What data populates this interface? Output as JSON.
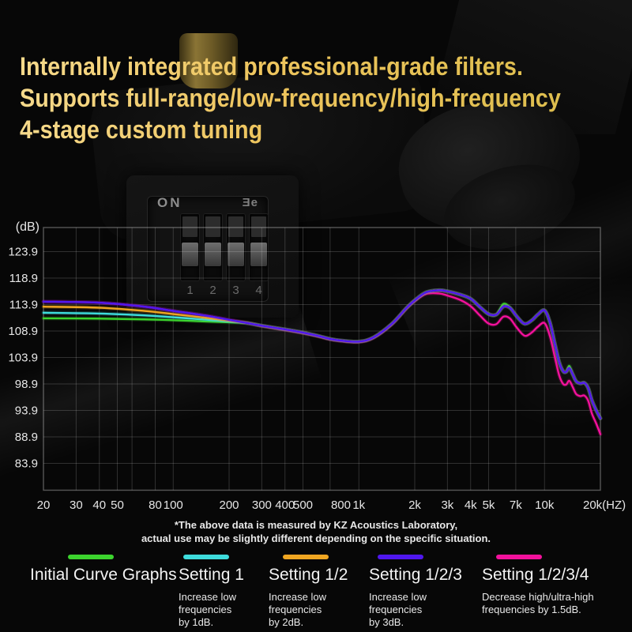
{
  "header": {
    "title_lines": [
      "Internally integrated professional-grade filters.",
      "Supports full-range/low-frequency/high-frequency",
      "4-stage custom tuning"
    ]
  },
  "dip_switch": {
    "on_label": "ON",
    "logo_text": "Ǝe",
    "switch_numbers": [
      "1",
      "2",
      "3",
      "4"
    ]
  },
  "chart_data": {
    "type": "line",
    "title": "",
    "x_unit_suffix": "(HZ)",
    "y_unit": "(dB)",
    "x_scale": "log",
    "xlim": [
      20,
      20000
    ],
    "ylim": [
      78.9,
      128.9
    ],
    "grid": true,
    "legend_position": "bottom",
    "y_ticks": [
      123.9,
      118.9,
      113.9,
      108.9,
      103.9,
      98.9,
      93.9,
      88.9,
      83.9
    ],
    "x_ticks": [
      {
        "f": 20,
        "label": "20"
      },
      {
        "f": 30,
        "label": "30"
      },
      {
        "f": 40,
        "label": "40"
      },
      {
        "f": 50,
        "label": "50"
      },
      {
        "f": 80,
        "label": "80"
      },
      {
        "f": 100,
        "label": "100"
      },
      {
        "f": 200,
        "label": "200"
      },
      {
        "f": 300,
        "label": "300"
      },
      {
        "f": 400,
        "label": "400"
      },
      {
        "f": 500,
        "label": "500"
      },
      {
        "f": 800,
        "label": "800"
      },
      {
        "f": 1000,
        "label": "1k"
      },
      {
        "f": 2000,
        "label": "2k"
      },
      {
        "f": 3000,
        "label": "3k"
      },
      {
        "f": 4000,
        "label": "4k"
      },
      {
        "f": 5000,
        "label": "5k"
      },
      {
        "f": 7000,
        "label": "7k"
      },
      {
        "f": 10000,
        "label": "10k"
      },
      {
        "f": 20000,
        "label": "20k(HZ)"
      }
    ],
    "x_gridlines": [
      30,
      40,
      50,
      60,
      80,
      100,
      200,
      300,
      400,
      500,
      700,
      1000,
      2000,
      3000,
      4000,
      5000,
      7000,
      10000
    ],
    "series": [
      {
        "name": "Initial Curve Graphs",
        "color": "#3cd42e",
        "points": [
          [
            20,
            111.3
          ],
          [
            40,
            111.25
          ],
          [
            70,
            111.1
          ],
          [
            100,
            110.95
          ],
          [
            150,
            110.7
          ],
          [
            200,
            110.55
          ],
          [
            250,
            110.4
          ],
          [
            300,
            109.9
          ],
          [
            400,
            109.2
          ],
          [
            500,
            108.6
          ],
          [
            600,
            108.0
          ],
          [
            700,
            107.4
          ],
          [
            800,
            107.1
          ],
          [
            1000,
            106.9
          ],
          [
            1200,
            107.7
          ],
          [
            1500,
            110.2
          ],
          [
            1800,
            113.2
          ],
          [
            2000,
            114.7
          ],
          [
            2300,
            116.2
          ],
          [
            2700,
            116.6
          ],
          [
            3000,
            116.4
          ],
          [
            3500,
            115.8
          ],
          [
            4000,
            115.0
          ],
          [
            4500,
            113.4
          ],
          [
            5000,
            112.1
          ],
          [
            5500,
            112.0
          ],
          [
            6000,
            114.0
          ],
          [
            6500,
            113.4
          ],
          [
            7000,
            111.9
          ],
          [
            7600,
            110.5
          ],
          [
            8000,
            110.3
          ],
          [
            8600,
            111.0
          ],
          [
            9200,
            112.0
          ],
          [
            10000,
            112.8
          ],
          [
            10700,
            110.5
          ],
          [
            11400,
            106.3
          ],
          [
            12000,
            103.0
          ],
          [
            12600,
            101.3
          ],
          [
            13100,
            101.2
          ],
          [
            13600,
            102.3
          ],
          [
            14200,
            100.7
          ],
          [
            14800,
            99.4
          ],
          [
            15600,
            99.0
          ],
          [
            16400,
            99.1
          ],
          [
            17200,
            98.1
          ],
          [
            18000,
            95.8
          ],
          [
            19000,
            93.9
          ],
          [
            20000,
            92.4
          ]
        ]
      },
      {
        "name": "Setting 1",
        "color": "#3edcdc",
        "points": [
          [
            20,
            112.35
          ],
          [
            40,
            112.2
          ],
          [
            70,
            111.85
          ],
          [
            100,
            111.5
          ],
          [
            150,
            111.05
          ],
          [
            200,
            110.7
          ],
          [
            250,
            110.4
          ],
          [
            300,
            109.9
          ],
          [
            400,
            109.2
          ],
          [
            500,
            108.6
          ],
          [
            600,
            108.0
          ],
          [
            700,
            107.4
          ],
          [
            800,
            107.1
          ],
          [
            1000,
            106.9
          ],
          [
            1200,
            107.7
          ],
          [
            1500,
            110.2
          ],
          [
            1800,
            113.2
          ],
          [
            2000,
            114.7
          ],
          [
            2300,
            116.2
          ],
          [
            2700,
            116.6
          ],
          [
            3000,
            116.4
          ],
          [
            3500,
            115.8
          ],
          [
            4000,
            115.0
          ],
          [
            4500,
            113.4
          ],
          [
            5000,
            112.1
          ],
          [
            5500,
            112.0
          ],
          [
            6000,
            113.5
          ],
          [
            6500,
            113.3
          ],
          [
            7000,
            111.9
          ],
          [
            7600,
            110.5
          ],
          [
            8000,
            110.3
          ],
          [
            8600,
            111.0
          ],
          [
            9200,
            112.0
          ],
          [
            10000,
            112.8
          ],
          [
            10700,
            110.5
          ],
          [
            11400,
            106.3
          ],
          [
            12000,
            103.0
          ],
          [
            12600,
            101.3
          ],
          [
            13100,
            101.2
          ],
          [
            13600,
            101.9
          ],
          [
            14200,
            100.7
          ],
          [
            14800,
            99.4
          ],
          [
            15600,
            99.0
          ],
          [
            16400,
            99.1
          ],
          [
            17200,
            98.1
          ],
          [
            18000,
            95.8
          ],
          [
            19000,
            93.9
          ],
          [
            20000,
            92.4
          ]
        ]
      },
      {
        "name": "Setting 1/2",
        "color": "#f0a621",
        "points": [
          [
            20,
            113.5
          ],
          [
            40,
            113.3
          ],
          [
            70,
            112.7
          ],
          [
            100,
            112.1
          ],
          [
            150,
            111.4
          ],
          [
            200,
            110.85
          ],
          [
            250,
            110.4
          ],
          [
            300,
            109.9
          ],
          [
            400,
            109.2
          ],
          [
            500,
            108.6
          ],
          [
            600,
            108.0
          ],
          [
            700,
            107.4
          ],
          [
            800,
            107.1
          ],
          [
            1000,
            106.9
          ],
          [
            1200,
            107.7
          ],
          [
            1500,
            110.2
          ],
          [
            1800,
            113.2
          ],
          [
            2000,
            114.7
          ],
          [
            2300,
            116.2
          ],
          [
            2700,
            116.6
          ],
          [
            3000,
            116.4
          ],
          [
            3500,
            115.8
          ],
          [
            4000,
            115.0
          ],
          [
            4500,
            113.4
          ],
          [
            5000,
            112.1
          ],
          [
            5500,
            112.0
          ],
          [
            6000,
            113.5
          ],
          [
            6500,
            113.3
          ],
          [
            7000,
            111.9
          ],
          [
            7600,
            110.5
          ],
          [
            8000,
            110.3
          ],
          [
            8600,
            111.0
          ],
          [
            9200,
            112.0
          ],
          [
            10000,
            112.8
          ],
          [
            10700,
            110.5
          ],
          [
            11400,
            106.3
          ],
          [
            12000,
            103.0
          ],
          [
            12600,
            101.3
          ],
          [
            13100,
            101.2
          ],
          [
            13600,
            101.9
          ],
          [
            14200,
            100.7
          ],
          [
            14800,
            99.4
          ],
          [
            15600,
            99.0
          ],
          [
            16400,
            99.1
          ],
          [
            17200,
            98.1
          ],
          [
            18000,
            95.8
          ],
          [
            19000,
            93.9
          ],
          [
            20000,
            92.4
          ]
        ]
      },
      {
        "name": "Setting 1/2/3",
        "color": "#4f17ef",
        "points": [
          [
            20,
            114.45
          ],
          [
            40,
            114.25
          ],
          [
            70,
            113.5
          ],
          [
            100,
            112.7
          ],
          [
            150,
            111.8
          ],
          [
            200,
            111.0
          ],
          [
            250,
            110.4
          ],
          [
            300,
            109.9
          ],
          [
            400,
            109.2
          ],
          [
            500,
            108.6
          ],
          [
            600,
            108.0
          ],
          [
            700,
            107.4
          ],
          [
            800,
            107.1
          ],
          [
            1000,
            106.9
          ],
          [
            1200,
            107.7
          ],
          [
            1500,
            110.2
          ],
          [
            1800,
            113.2
          ],
          [
            2000,
            114.7
          ],
          [
            2300,
            116.2
          ],
          [
            2700,
            116.6
          ],
          [
            3000,
            116.4
          ],
          [
            3500,
            115.8
          ],
          [
            4000,
            115.0
          ],
          [
            4500,
            113.4
          ],
          [
            5000,
            112.1
          ],
          [
            5500,
            112.0
          ],
          [
            6000,
            113.5
          ],
          [
            6500,
            113.3
          ],
          [
            7000,
            111.9
          ],
          [
            7600,
            110.5
          ],
          [
            8000,
            110.3
          ],
          [
            8600,
            111.0
          ],
          [
            9200,
            112.0
          ],
          [
            10000,
            112.8
          ],
          [
            10700,
            110.5
          ],
          [
            11400,
            106.3
          ],
          [
            12000,
            103.0
          ],
          [
            12600,
            101.3
          ],
          [
            13100,
            101.2
          ],
          [
            13600,
            101.9
          ],
          [
            14200,
            100.7
          ],
          [
            14800,
            99.4
          ],
          [
            15600,
            99.0
          ],
          [
            16400,
            99.1
          ],
          [
            17200,
            98.1
          ],
          [
            18000,
            95.8
          ],
          [
            19000,
            93.9
          ],
          [
            20000,
            92.4
          ]
        ]
      },
      {
        "name": "Setting 1/2/3/4",
        "color": "#f3119c",
        "points": [
          [
            20,
            114.45
          ],
          [
            40,
            114.25
          ],
          [
            70,
            113.5
          ],
          [
            100,
            112.7
          ],
          [
            150,
            111.8
          ],
          [
            200,
            111.0
          ],
          [
            250,
            110.45
          ],
          [
            300,
            109.85
          ],
          [
            400,
            109.1
          ],
          [
            500,
            108.5
          ],
          [
            600,
            107.9
          ],
          [
            700,
            107.3
          ],
          [
            800,
            107.0
          ],
          [
            1000,
            106.8
          ],
          [
            1200,
            107.6
          ],
          [
            1500,
            110.1
          ],
          [
            1800,
            113.1
          ],
          [
            2000,
            114.55
          ],
          [
            2300,
            115.9
          ],
          [
            2700,
            116.0
          ],
          [
            3000,
            115.6
          ],
          [
            3500,
            114.8
          ],
          [
            4000,
            113.6
          ],
          [
            4500,
            111.8
          ],
          [
            5000,
            110.3
          ],
          [
            5500,
            110.2
          ],
          [
            6000,
            111.6
          ],
          [
            6500,
            111.3
          ],
          [
            7000,
            109.8
          ],
          [
            7600,
            108.3
          ],
          [
            8000,
            108.0
          ],
          [
            8600,
            108.7
          ],
          [
            9200,
            109.7
          ],
          [
            10000,
            110.4
          ],
          [
            10700,
            107.9
          ],
          [
            11400,
            103.8
          ],
          [
            12000,
            100.5
          ],
          [
            12600,
            98.9
          ],
          [
            13100,
            98.8
          ],
          [
            13600,
            99.5
          ],
          [
            14200,
            98.3
          ],
          [
            14800,
            97.0
          ],
          [
            15600,
            96.6
          ],
          [
            16400,
            96.7
          ],
          [
            17200,
            95.7
          ],
          [
            18000,
            93.3
          ],
          [
            19000,
            91.4
          ],
          [
            20000,
            89.4
          ]
        ]
      }
    ]
  },
  "footnote": {
    "line1": "*The above data is measured by KZ Acoustics Laboratory,",
    "line2": "actual use may be slightly different depending on the specific situation."
  },
  "legend": [
    {
      "label": "Initial Curve Graphs",
      "color": "#3cd42e",
      "desc": ""
    },
    {
      "label": "Setting 1",
      "color": "#3edcdc",
      "desc": "Increase low\nfrequencies\nby 1dB."
    },
    {
      "label": "Setting 1/2",
      "color": "#f0a621",
      "desc": "Increase low\nfrequencies\nby 2dB."
    },
    {
      "label": "Setting 1/2/3",
      "color": "#4f17ef",
      "desc": "Increase low\nfrequencies\nby 3dB."
    },
    {
      "label": "Setting 1/2/3/4",
      "color": "#f3119c",
      "desc": "Decrease high/ultra-high\nfrequencies by 1.5dB."
    }
  ]
}
